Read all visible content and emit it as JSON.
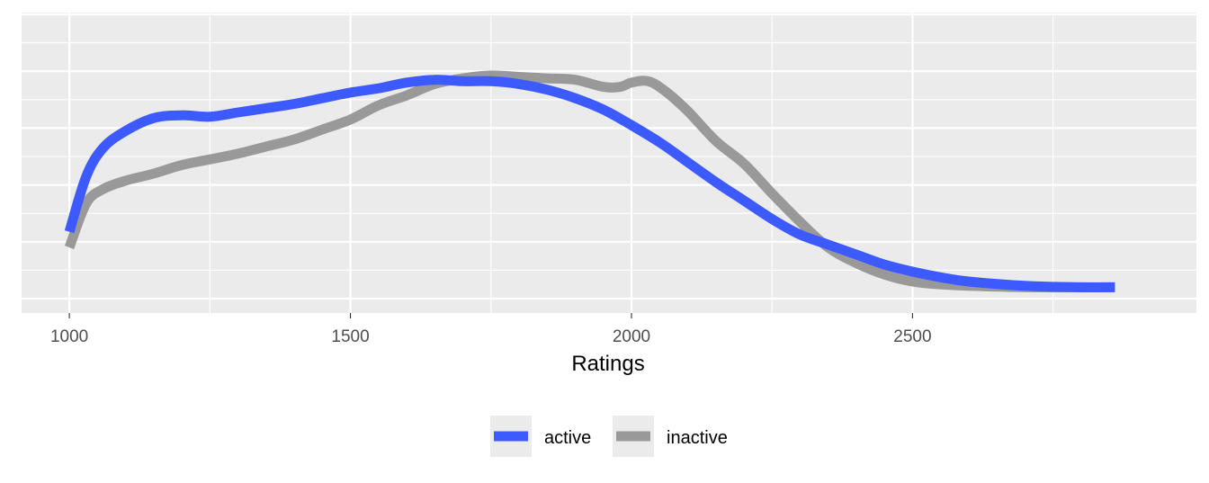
{
  "chart_data": {
    "type": "line",
    "title": "",
    "xlabel": "Ratings",
    "ylabel": "",
    "xlim": [
      915,
      3005
    ],
    "ylim": [
      0,
      1.0
    ],
    "x_ticks": [
      1000,
      1500,
      2000,
      2500
    ],
    "x_tick_labels": [
      "1000",
      "1500",
      "2000",
      "2500"
    ],
    "grid": true,
    "legend_position": "bottom",
    "series": [
      {
        "name": "active",
        "color": "#3D5AFE",
        "x": [
          1000,
          1030,
          1060,
          1100,
          1150,
          1200,
          1250,
          1300,
          1350,
          1400,
          1450,
          1500,
          1550,
          1600,
          1650,
          1700,
          1750,
          1800,
          1850,
          1900,
          1950,
          2000,
          2050,
          2100,
          2150,
          2200,
          2250,
          2300,
          2350,
          2400,
          2450,
          2500,
          2550,
          2600,
          2700,
          2800,
          2860
        ],
        "y": [
          0.235,
          0.43,
          0.53,
          0.59,
          0.635,
          0.645,
          0.64,
          0.655,
          0.67,
          0.685,
          0.705,
          0.725,
          0.74,
          0.76,
          0.77,
          0.765,
          0.765,
          0.755,
          0.735,
          0.705,
          0.665,
          0.61,
          0.55,
          0.48,
          0.41,
          0.345,
          0.28,
          0.225,
          0.19,
          0.155,
          0.12,
          0.095,
          0.075,
          0.06,
          0.045,
          0.04,
          0.04
        ]
      },
      {
        "name": "inactive",
        "color": "#999999",
        "x": [
          1000,
          1030,
          1060,
          1100,
          1150,
          1200,
          1250,
          1300,
          1350,
          1400,
          1450,
          1500,
          1550,
          1600,
          1650,
          1700,
          1750,
          1800,
          1850,
          1900,
          1950,
          1980,
          2000,
          2030,
          2060,
          2100,
          2150,
          2200,
          2250,
          2300,
          2350,
          2400,
          2450,
          2500,
          2550,
          2600,
          2700,
          2800,
          2860
        ],
        "y": [
          0.18,
          0.335,
          0.385,
          0.415,
          0.44,
          0.47,
          0.49,
          0.51,
          0.535,
          0.56,
          0.595,
          0.63,
          0.68,
          0.715,
          0.755,
          0.775,
          0.785,
          0.78,
          0.775,
          0.77,
          0.745,
          0.745,
          0.76,
          0.765,
          0.73,
          0.66,
          0.555,
          0.475,
          0.37,
          0.27,
          0.18,
          0.125,
          0.085,
          0.06,
          0.05,
          0.045,
          0.04,
          0.04,
          0.04
        ]
      }
    ]
  }
}
